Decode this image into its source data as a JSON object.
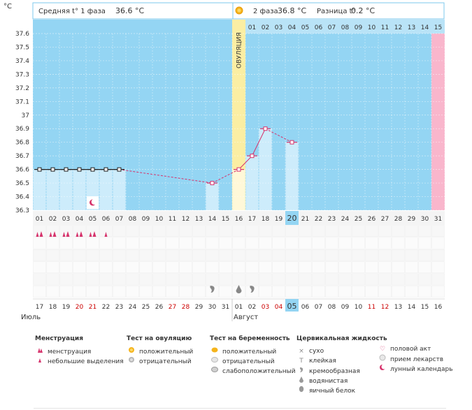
{
  "header": {
    "unit": "°C",
    "phase1_label": "Средняя t° 1 фаза",
    "phase1_value": "36.6 °C",
    "phase2_label": "2 фаза",
    "phase2_value": "36.8 °C",
    "diff_label": "Разница t°",
    "diff_value": "0.2 °C"
  },
  "ovulation_label": "ОВУЛЯЦИЯ",
  "colors": {
    "bg": "#94d5f3",
    "bar": "#cdecfb",
    "ovulation": "#fbeea3",
    "ovulation_bar": "#fff8d8",
    "pink": "#f9b6cc",
    "line": "#d6336c",
    "grid": "#ffffff",
    "red_text": "#cc0000"
  },
  "chart_data": {
    "type": "line",
    "ylabel": "°C",
    "ylim": [
      36.3,
      37.6
    ],
    "yticks": [
      "37.6",
      "37.5",
      "37.4",
      "37.3",
      "37.2",
      "37.1",
      "37",
      "36.9",
      "36.8",
      "36.7",
      "36.6",
      "36.5",
      "36.4",
      "36.3"
    ],
    "cycle_days": [
      "01",
      "02",
      "03",
      "04",
      "05",
      "06",
      "07",
      "08",
      "09",
      "10",
      "11",
      "12",
      "13",
      "14",
      "15",
      "16",
      "17",
      "18",
      "19",
      "20",
      "21",
      "22",
      "23",
      "24",
      "25",
      "26",
      "27",
      "28",
      "29",
      "30",
      "31"
    ],
    "current_cycle_day": "20",
    "ovulation_day": "16",
    "post_ovulation_days": [
      "01",
      "02",
      "03",
      "04",
      "05",
      "06",
      "07",
      "08",
      "09",
      "10",
      "11",
      "12",
      "13",
      "14",
      "15"
    ],
    "temperatures": [
      36.6,
      36.6,
      36.6,
      36.6,
      36.6,
      36.6,
      36.6,
      null,
      null,
      null,
      null,
      null,
      null,
      36.5,
      null,
      36.6,
      36.7,
      36.9,
      null,
      36.8,
      null,
      null,
      null,
      null,
      null,
      null,
      null,
      null,
      null,
      null,
      null
    ],
    "dates": [
      "17",
      "18",
      "19",
      "20",
      "21",
      "22",
      "23",
      "24",
      "25",
      "26",
      "27",
      "28",
      "29",
      "30",
      "31",
      "01",
      "02",
      "03",
      "04",
      "05",
      "06",
      "07",
      "08",
      "09",
      "10",
      "11",
      "12",
      "13",
      "14",
      "15",
      "16"
    ],
    "red_date_indices": [
      3,
      4,
      10,
      11,
      17,
      18,
      25,
      26
    ],
    "current_date": "05",
    "months": [
      {
        "label": "Июль",
        "index": 0
      },
      {
        "label": "Август",
        "index": 15
      }
    ],
    "menstruation_heavy": [
      0,
      1,
      2,
      3,
      4
    ],
    "menstruation_light": [
      5
    ],
    "moon_index": 4,
    "fluid_creamy": [
      13,
      16
    ],
    "fluid_watery": [
      15
    ]
  },
  "legend": {
    "menstruation": {
      "title": "Менструация",
      "items": [
        "менструация",
        "небольшие выделения"
      ]
    },
    "ovulation_test": {
      "title": "Тест на овуляцию",
      "items": [
        "положительный",
        "отрицательный"
      ]
    },
    "pregnancy_test": {
      "title": "Тест на беременность",
      "items": [
        "положительный",
        "отрицательный",
        "слабоположительный"
      ]
    },
    "cervical": {
      "title": "Цервикальная жидкость",
      "items": [
        "сухо",
        "клейкая",
        "кремообразная",
        "водянистая",
        "яичный белок"
      ]
    },
    "other": {
      "items": [
        "половой акт",
        "прием лекарств",
        "лунный календарь"
      ]
    }
  }
}
